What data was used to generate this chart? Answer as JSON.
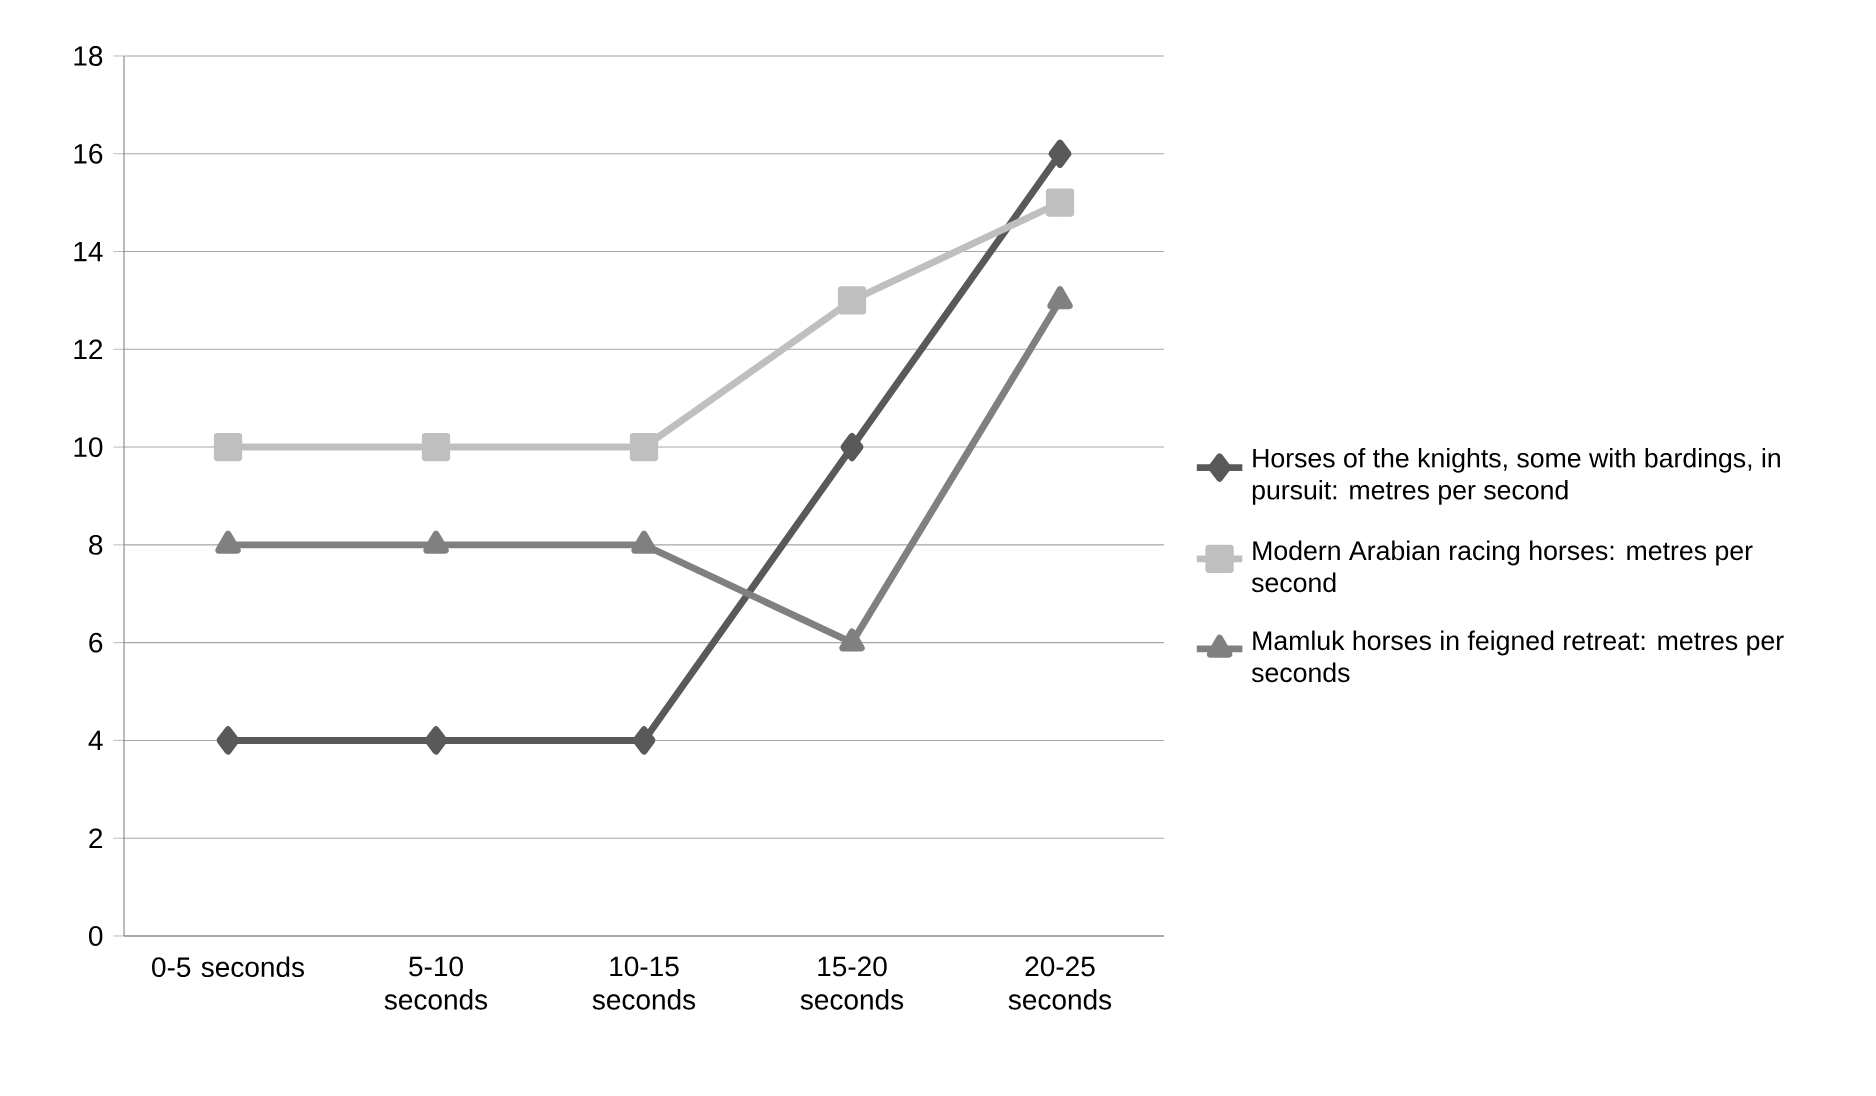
{
  "chart_data": {
    "type": "line",
    "categories": [
      "0-5 seconds",
      "5-10 seconds",
      "10-15 seconds",
      "15-20 seconds",
      "20-25 seconds"
    ],
    "series": [
      {
        "name": " Horses of the knights, some with bardings, in pursuit: metres per second",
        "color": "#595959",
        "marker": "diamond",
        "values": [
          4,
          4,
          4,
          10,
          16
        ]
      },
      {
        "name": "Modern Arabian racing horses: metres per second",
        "color": "#bfbfbf",
        "marker": "square",
        "values": [
          10,
          10,
          10,
          13,
          15
        ]
      },
      {
        "name": "Mamluk horses in feigned retreat: metres per seconds",
        "color": "#808080",
        "marker": "triangle",
        "values": [
          8,
          8,
          8,
          6,
          13
        ]
      }
    ],
    "ylim": [
      0,
      18
    ],
    "yticks": [
      0,
      2,
      4,
      6,
      8,
      10,
      12,
      14,
      16,
      18
    ],
    "grid": "y",
    "legend": "right",
    "line_style": "solid"
  }
}
